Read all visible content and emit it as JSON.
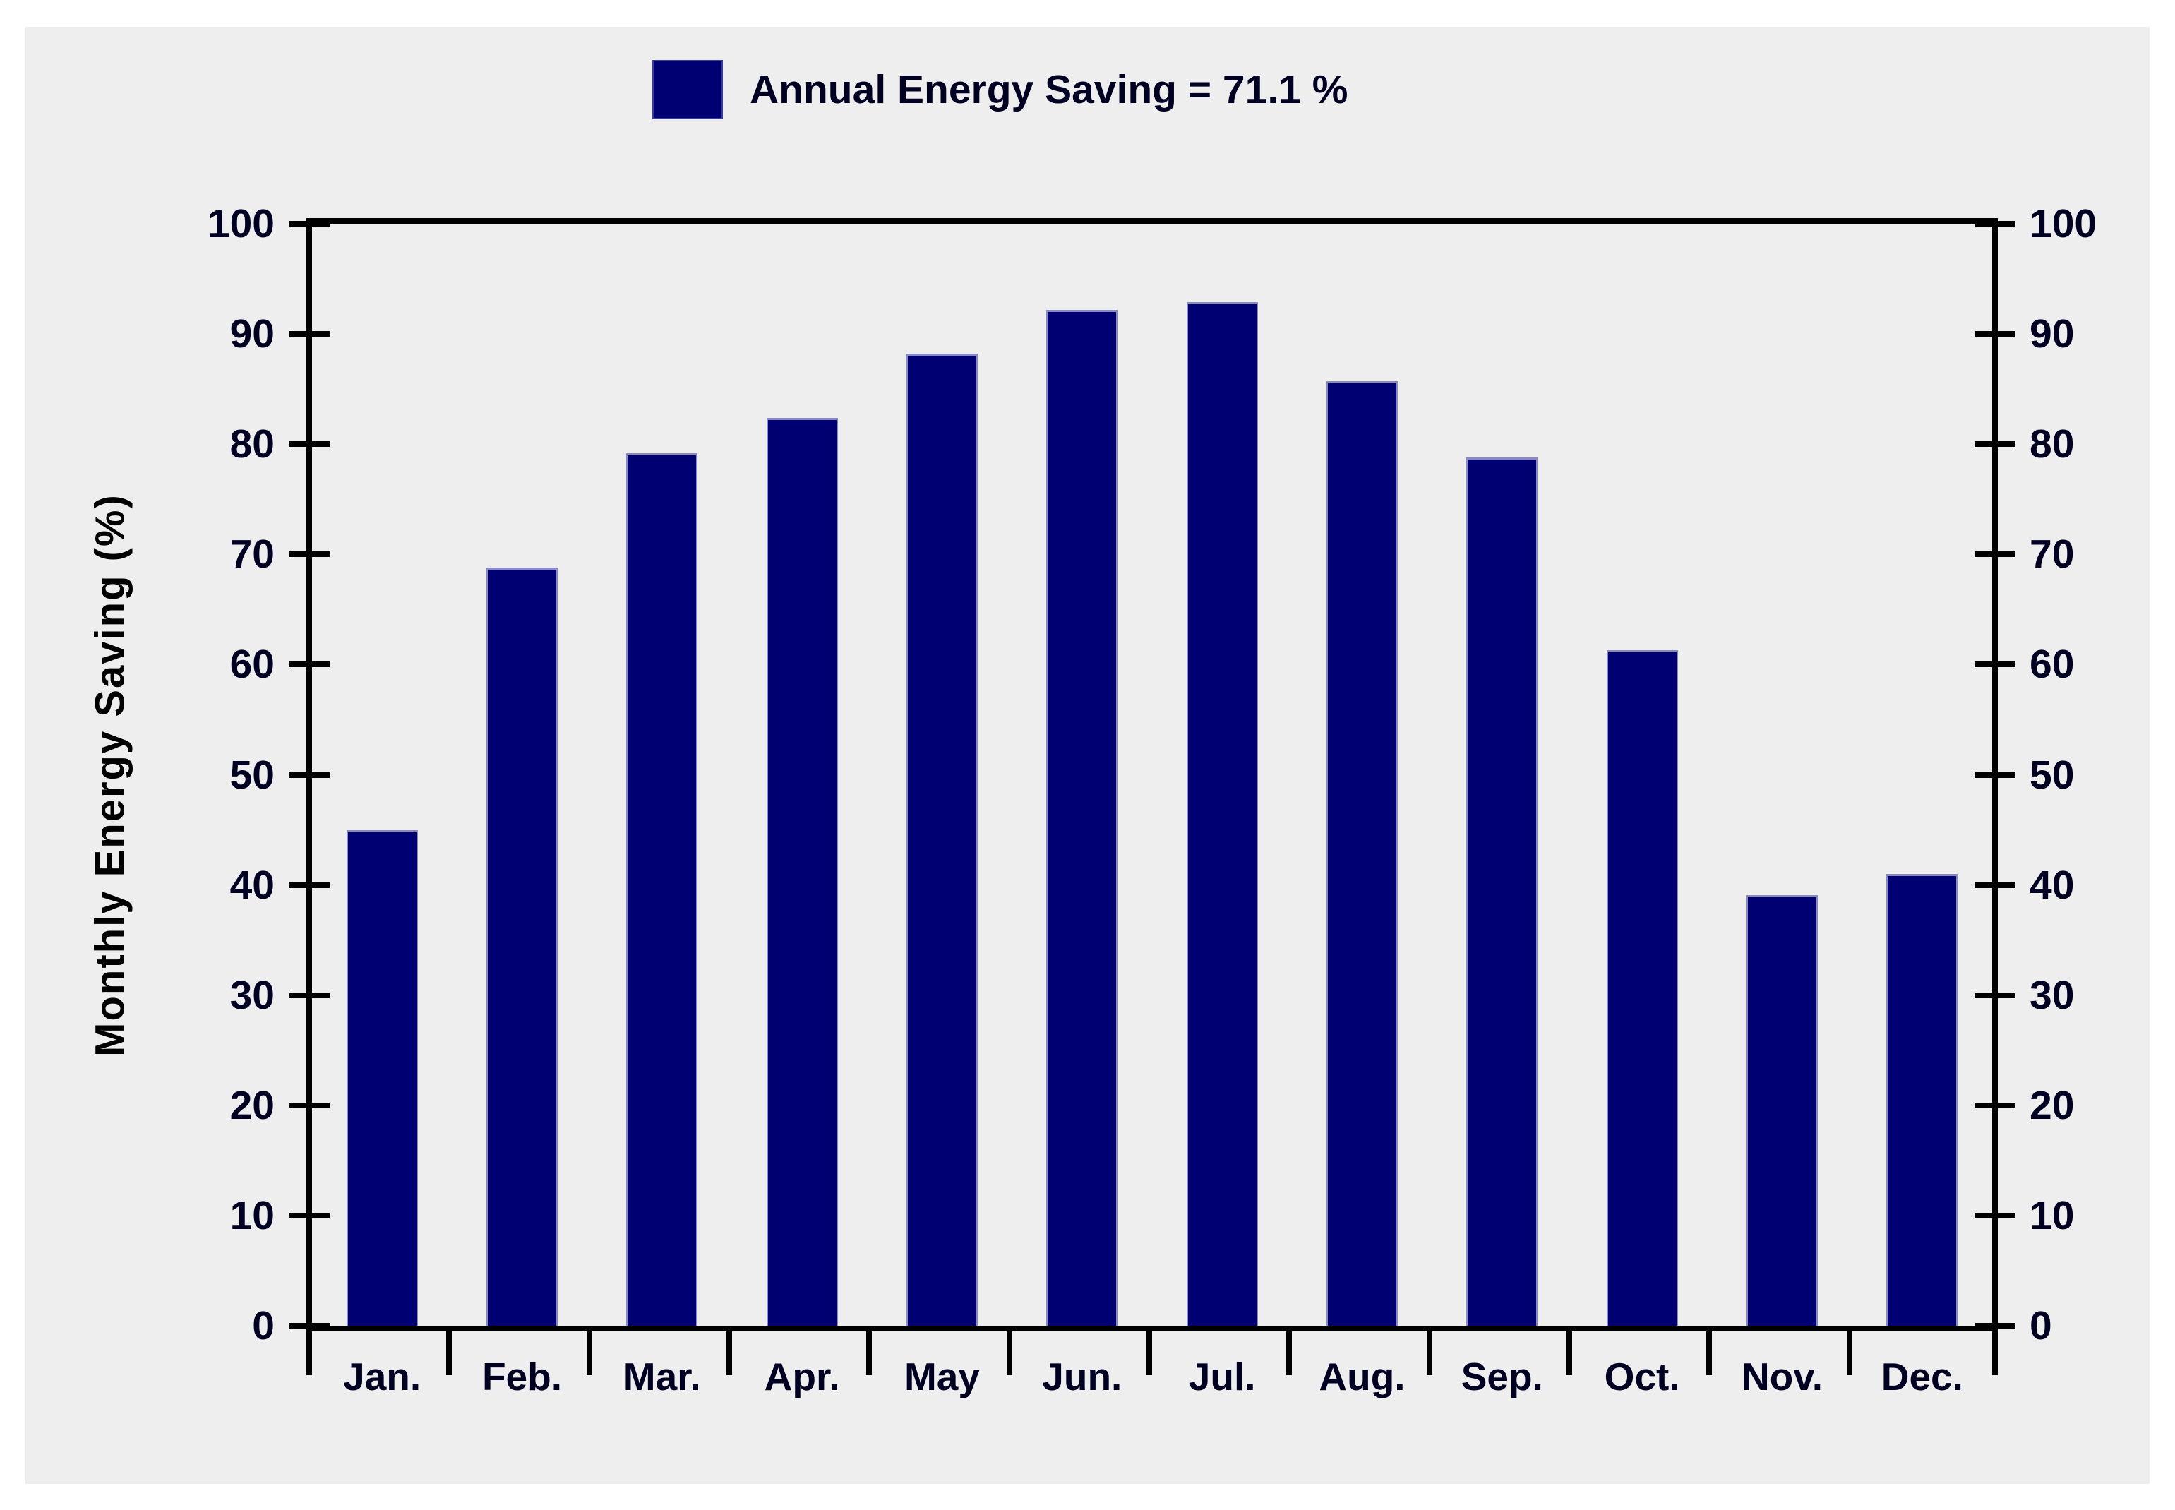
{
  "colors": {
    "panel_background": "#eeeeee",
    "bar": "#000072",
    "axis": "#000000",
    "text": "#000022"
  },
  "legend": {
    "swatch": "navy-square",
    "label": "Annual Energy Saving = 71.1 %"
  },
  "chart_data": {
    "type": "bar",
    "title": "Annual Energy Saving = 71.1 %",
    "annual_energy_saving_pct": 71.1,
    "categories": [
      "Jan.",
      "Feb.",
      "Mar.",
      "Apr.",
      "May",
      "Jun.",
      "Jul.",
      "Aug.",
      "Sep.",
      "Oct.",
      "Nov.",
      "Dec."
    ],
    "values": [
      45.0,
      68.8,
      79.2,
      82.4,
      88.2,
      92.2,
      92.9,
      85.7,
      78.8,
      61.3,
      39.1,
      41.0
    ],
    "xlabel": "",
    "ylabel": "Monthly Energy Saving (%)",
    "ylim": [
      0,
      100
    ],
    "yticks": [
      0,
      10,
      20,
      30,
      40,
      50,
      60,
      70,
      80,
      90,
      100
    ],
    "y_axis_sides": "both",
    "grid": false,
    "legend_position": "top-center",
    "bar_color": "#000072"
  }
}
